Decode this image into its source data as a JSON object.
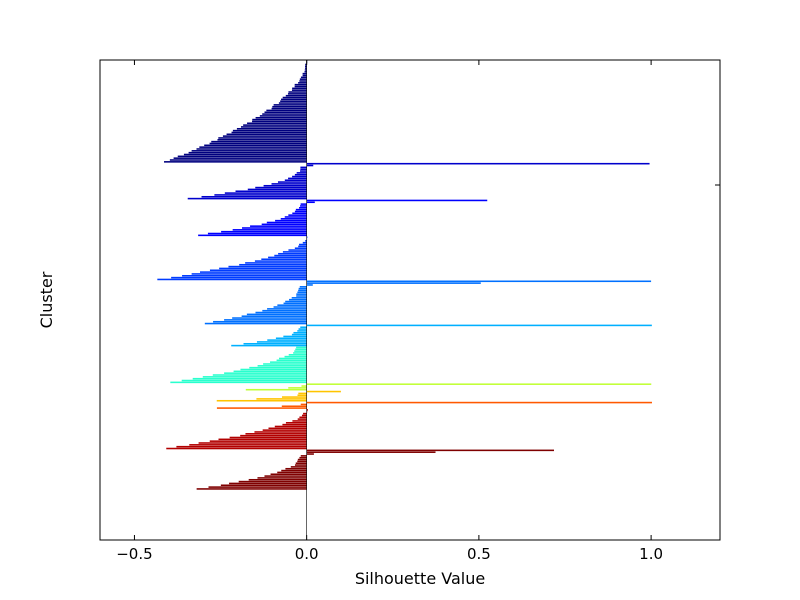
{
  "chart_data": {
    "type": "bar",
    "orientation": "horizontal",
    "title": "",
    "xlabel": "Silhouette Value",
    "ylabel": "Cluster",
    "xlim": [
      -0.6,
      1.2
    ],
    "xticks": [
      -0.5,
      0.0,
      0.5,
      1.0
    ],
    "xtick_labels": [
      "−0.5",
      "0.0",
      "0.5",
      "1.0"
    ],
    "ytick_labels": [],
    "grid": false,
    "legend": "none",
    "clusters": [
      {
        "cluster": 1,
        "color": "#00007f",
        "points": 56,
        "min": -0.41,
        "max": 0.0,
        "shape": "sorted-descending"
      },
      {
        "cluster": 2,
        "color": "#0000cc",
        "points": 20,
        "min": -0.35,
        "max": 1.0,
        "shape": "sorted-descending"
      },
      {
        "cluster": 3,
        "color": "#0000ff",
        "points": 20,
        "min": -0.32,
        "max": 0.52,
        "shape": "sorted-descending"
      },
      {
        "cluster": 4,
        "color": "#003cff",
        "points": 24,
        "min": -0.43,
        "max": 0.0,
        "shape": "sorted-descending"
      },
      {
        "cluster": 5,
        "color": "#0070ff",
        "points": 24,
        "min": -0.3,
        "max": 1.0,
        "shape": "sorted-descending"
      },
      {
        "cluster": 6,
        "color": "#00b0ff",
        "points": 12,
        "min": -0.22,
        "max": 1.0,
        "shape": "sorted-descending"
      },
      {
        "cluster": 7,
        "color": "#29ffce",
        "points": 20,
        "min": -0.4,
        "max": -0.03,
        "shape": "sorted-descending"
      },
      {
        "cluster": 8,
        "color": "#c1ff36",
        "points": 4,
        "min": -0.18,
        "max": 1.0,
        "shape": "sorted-descending"
      },
      {
        "cluster": 9,
        "color": "#ffc400",
        "points": 6,
        "min": -0.26,
        "max": 0.1,
        "shape": "sorted-descending"
      },
      {
        "cluster": 10,
        "color": "#ff5900",
        "points": 4,
        "min": -0.26,
        "max": 1.0,
        "shape": "sorted-descending"
      },
      {
        "cluster": 11,
        "color": "#b20000",
        "points": 22,
        "min": -0.41,
        "max": 0.0,
        "shape": "sorted-descending"
      },
      {
        "cluster": 12,
        "color": "#7f0000",
        "points": 22,
        "min": -0.32,
        "max": 0.72,
        "shape": "sorted-descending"
      }
    ]
  }
}
